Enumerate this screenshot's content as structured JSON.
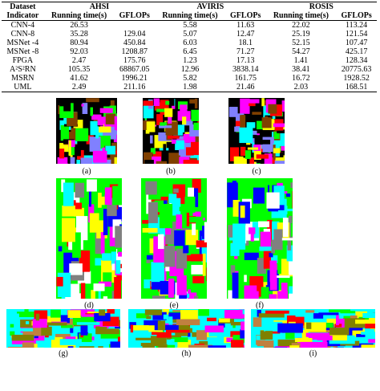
{
  "table": {
    "header1": [
      "Dataset",
      "AHSI",
      "AVIRIS",
      "ROSIS"
    ],
    "header2": [
      "Indicator",
      "Running time(s)",
      "GFLOPs",
      "Running time(s)",
      "GFLOPs",
      "Running time(s)",
      "GFLOPs"
    ],
    "rows": [
      [
        "CNN-4",
        "26.53",
        "",
        "5.58",
        "11.63",
        "22.02",
        "113.24"
      ],
      [
        "CNN-8",
        "35.28",
        "129.04",
        "5.07",
        "12.47",
        "25.19",
        "121.54"
      ],
      [
        "MSNet -4",
        "80.94",
        "450.84",
        "6.03",
        "18.1",
        "52.15",
        "107.47"
      ],
      [
        "MSNet -8",
        "92.03",
        "1208.87",
        "6.45",
        "71.27",
        "54.27",
        "425.17"
      ],
      [
        "FPGA",
        "2.47",
        "175.76",
        "1.23",
        "17.13",
        "1.41",
        "128.34"
      ],
      [
        "A²S²RN",
        "105.35",
        "68867.05",
        "12.96",
        "3838.14",
        "38.41",
        "20775.63"
      ],
      [
        "MSRN",
        "41.62",
        "1996.21",
        "5.82",
        "161.75",
        "16.72",
        "1928.52"
      ],
      [
        "UML",
        "2.49",
        "211.16",
        "1.98",
        "21.46",
        "2.03",
        "168.51"
      ]
    ]
  },
  "figure": {
    "labels": [
      "(a)",
      "(b)",
      "(c)",
      "(d)",
      "(e)",
      "(f)",
      "(g)",
      "(h)",
      "(i)"
    ]
  }
}
